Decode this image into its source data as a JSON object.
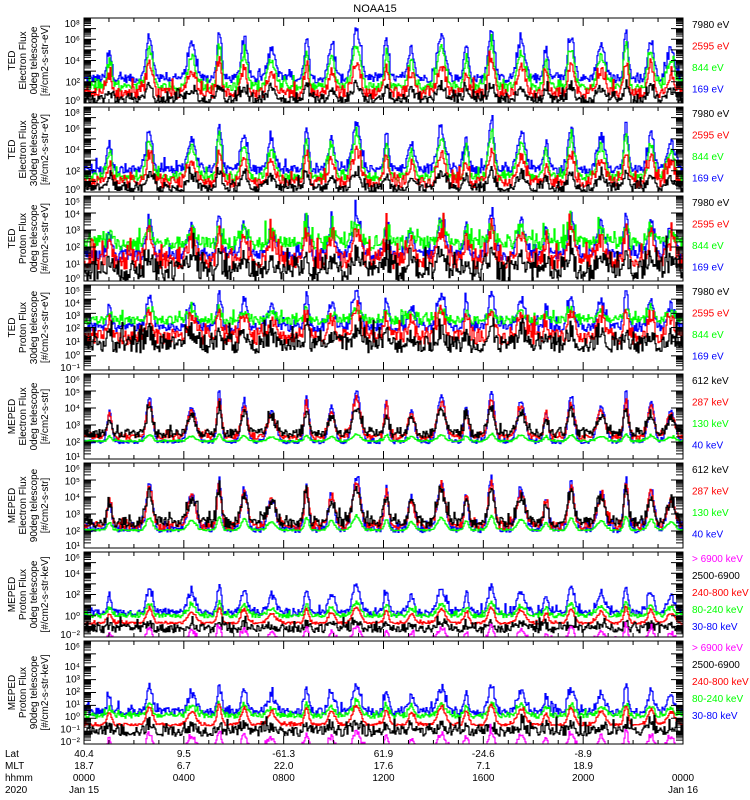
{
  "chart_data": {
    "type": "line",
    "title": "NOAA15",
    "x_unit": "hours from 2020 Jan 15 0000 UT",
    "xlim": [
      0,
      24
    ],
    "event_peaks_hours": [
      1.0,
      2.6,
      4.3,
      5.4,
      6.4,
      7.5,
      8.9,
      9.9,
      10.9,
      12.1,
      13.1,
      14.3,
      15.3,
      16.3,
      17.5,
      18.5,
      19.5,
      20.7,
      21.7,
      22.7,
      23.5
    ],
    "panels": [
      {
        "ylabel": [
          "TED",
          "Electron Flux",
          "0deg telescope",
          "[#/cm2-s-str-eV]"
        ],
        "ylim_log10": [
          0,
          8
        ],
        "yticks_exp": [
          "0",
          "2",
          "4",
          "6",
          "8"
        ],
        "series": [
          {
            "name": "7980 eV",
            "color": "#000000"
          },
          {
            "name": "2595 eV",
            "color": "#ff0000"
          },
          {
            "name": "844 eV",
            "color": "#00ff00"
          },
          {
            "name": "169 eV",
            "color": "#0000ff"
          }
        ]
      },
      {
        "ylabel": [
          "TED",
          "Electron Flux",
          "30deg telescope",
          "[#/cm2-s-str-eV]"
        ],
        "ylim_log10": [
          0,
          8
        ],
        "yticks_exp": [
          "0",
          "2",
          "4",
          "6",
          "8"
        ],
        "series": [
          {
            "name": "7980 eV",
            "color": "#000000"
          },
          {
            "name": "2595 eV",
            "color": "#ff0000"
          },
          {
            "name": "844 eV",
            "color": "#00ff00"
          },
          {
            "name": "169 eV",
            "color": "#0000ff"
          }
        ]
      },
      {
        "ylabel": [
          "TED",
          "Proton Flux",
          "0deg telescope",
          "[#/cm2-s-str-eV]"
        ],
        "ylim_log10": [
          0,
          5
        ],
        "yticks_exp": [
          "0",
          "1",
          "2",
          "3",
          "4",
          "5"
        ],
        "series": [
          {
            "name": "7980 eV",
            "color": "#000000"
          },
          {
            "name": "2595 eV",
            "color": "#ff0000"
          },
          {
            "name": "844 eV",
            "color": "#00ff00"
          },
          {
            "name": "169 eV",
            "color": "#0000ff"
          }
        ]
      },
      {
        "ylabel": [
          "TED",
          "Proton Flux",
          "30deg telescope",
          "[#/cm2-s-str-eV]"
        ],
        "ylim_log10": [
          -1,
          5
        ],
        "yticks_exp": [
          "-1",
          "0",
          "1",
          "2",
          "3",
          "4",
          "5"
        ],
        "series": [
          {
            "name": "7980 eV",
            "color": "#000000"
          },
          {
            "name": "2595 eV",
            "color": "#ff0000"
          },
          {
            "name": "844 eV",
            "color": "#00ff00"
          },
          {
            "name": "169 eV",
            "color": "#0000ff"
          }
        ]
      },
      {
        "ylabel": [
          "MEPED",
          "Electron Flux",
          "0deg telescope",
          "[#/cm2-s-str]"
        ],
        "ylim_log10": [
          1,
          6
        ],
        "yticks_exp": [
          "1",
          "2",
          "3",
          "4",
          "5",
          "6"
        ],
        "series": [
          {
            "name": "612 keV",
            "color": "#000000"
          },
          {
            "name": "287 keV",
            "color": "#ff0000"
          },
          {
            "name": "130 keV",
            "color": "#00ff00"
          },
          {
            "name": "40 keV",
            "color": "#0000ff"
          }
        ]
      },
      {
        "ylabel": [
          "MEPED",
          "Electron Flux",
          "90deg telescope",
          "[#/cm2-s-str]"
        ],
        "ylim_log10": [
          1,
          6
        ],
        "yticks_exp": [
          "1",
          "2",
          "3",
          "4",
          "5",
          "6"
        ],
        "series": [
          {
            "name": "612 keV",
            "color": "#000000"
          },
          {
            "name": "287 keV",
            "color": "#ff0000"
          },
          {
            "name": "130 keV",
            "color": "#00ff00"
          },
          {
            "name": "40 keV",
            "color": "#0000ff"
          }
        ]
      },
      {
        "ylabel": [
          "MEPED",
          "Proton Flux",
          "0deg telescope",
          "[#/cm2-s-str-keV]"
        ],
        "ylim_log10": [
          -2,
          6
        ],
        "yticks_exp": [
          "-2",
          "0",
          "2",
          "4",
          "6"
        ],
        "series": [
          {
            "name": "> 6900 keV",
            "color": "#ff00ff"
          },
          {
            "name": "2500-6900",
            "color": "#000000"
          },
          {
            "name": "240-800 keV",
            "color": "#ff0000"
          },
          {
            "name": "80-240 keV",
            "color": "#00ff00"
          },
          {
            "name": "30-80 keV",
            "color": "#0000ff"
          }
        ]
      },
      {
        "ylabel": [
          "MEPED",
          "Proton Flux",
          "90deg telescope",
          "[#/cm2-s-str-keV]"
        ],
        "ylim_log10": [
          -2,
          6
        ],
        "yticks_exp": [
          "-2",
          "-1",
          "0",
          "1",
          "2",
          "3",
          "4",
          "6"
        ],
        "series": [
          {
            "name": "> 6900 keV",
            "color": "#ff00ff"
          },
          {
            "name": "2500-6900",
            "color": "#000000"
          },
          {
            "name": "240-800 keV",
            "color": "#ff0000"
          },
          {
            "name": "80-240 keV",
            "color": "#00ff00"
          },
          {
            "name": "30-80 keV",
            "color": "#0000ff"
          }
        ]
      }
    ],
    "x_axis": {
      "row_labels": [
        "Lat",
        "MLT",
        "hhmm",
        "2020"
      ],
      "ticks": [
        {
          "hour": 0,
          "lat": "40.4",
          "mlt": "18.7",
          "hhmm": "0000",
          "date": "Jan 15"
        },
        {
          "hour": 4,
          "lat": "9.5",
          "mlt": "6.7",
          "hhmm": "0400",
          "date": ""
        },
        {
          "hour": 8,
          "lat": "-61.3",
          "mlt": "22.0",
          "hhmm": "0800",
          "date": ""
        },
        {
          "hour": 12,
          "lat": "61.9",
          "mlt": "17.6",
          "hhmm": "1200",
          "date": ""
        },
        {
          "hour": 16,
          "lat": "-24.6",
          "mlt": "7.1",
          "hhmm": "1600",
          "date": ""
        },
        {
          "hour": 20,
          "lat": "-8.9",
          "mlt": "18.9",
          "hhmm": "2000",
          "date": ""
        },
        {
          "hour": 24,
          "lat": "",
          "mlt": "",
          "hhmm": "0000",
          "date": "Jan 16"
        }
      ]
    }
  }
}
